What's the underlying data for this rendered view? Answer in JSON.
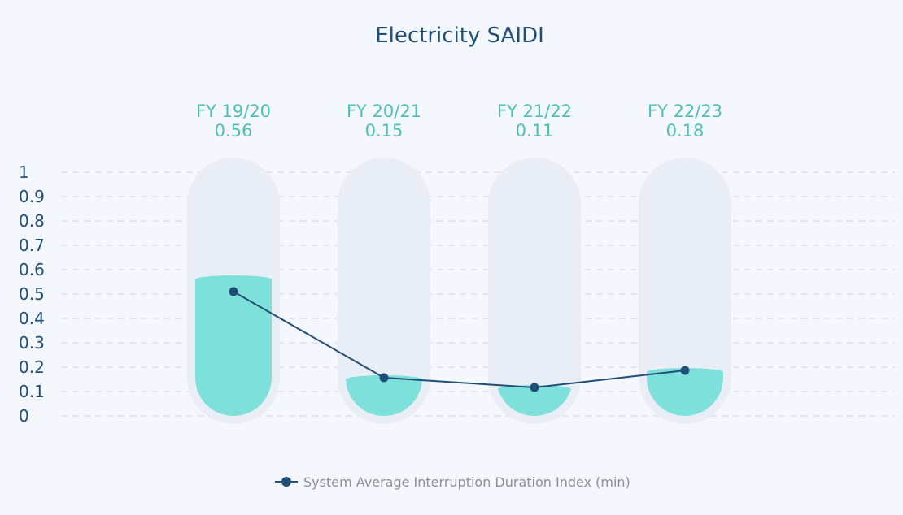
{
  "chart_data": {
    "type": "bar",
    "title": "Electricity SAIDI",
    "categories": [
      "FY 19/20",
      "FY 20/21",
      "FY 21/22",
      "FY 22/23"
    ],
    "value_labels": [
      "0.56",
      "0.15",
      "0.11",
      "0.18"
    ],
    "series": [
      {
        "name": "System Average Interruption Duration Index (min)",
        "values": [
          0.56,
          0.15,
          0.11,
          0.18
        ]
      }
    ],
    "ylim": [
      0,
      1
    ],
    "yticks": [
      "0",
      "0.1",
      "0.2",
      "0.3",
      "0.4",
      "0.5",
      "0.6",
      "0.7",
      "0.8",
      "0.9",
      "1"
    ],
    "grid": true,
    "legend_position": "bottom",
    "colors": {
      "bar": "#7ee0da",
      "track": "#e9edf5",
      "line": "#1f4e79",
      "label": "#4dbfb4",
      "axis_text": "#1f4e79"
    }
  }
}
